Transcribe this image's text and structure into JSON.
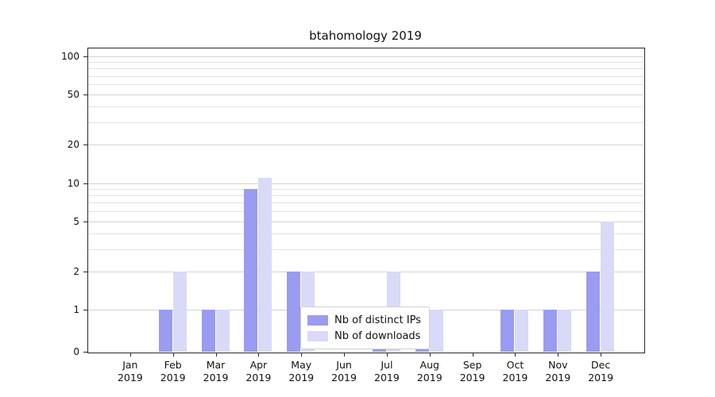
{
  "title": "btahomology 2019",
  "chart_data": {
    "type": "bar",
    "title": "btahomology 2019",
    "categories": [
      "Jan",
      "Feb",
      "Mar",
      "Apr",
      "May",
      "Jun",
      "Jul",
      "Aug",
      "Sep",
      "Oct",
      "Nov",
      "Dec"
    ],
    "year_label": "2019",
    "series": [
      {
        "name": "Nb of distinct IPs",
        "color": "#999cf0",
        "values": [
          0,
          1,
          1,
          9,
          2,
          0,
          1,
          1,
          0,
          1,
          1,
          2
        ]
      },
      {
        "name": "Nb of downloads",
        "color": "#d9daf8",
        "values": [
          0,
          2,
          1,
          11,
          2,
          0,
          2,
          1,
          0,
          1,
          1,
          5
        ]
      }
    ],
    "yticks": [
      0,
      1,
      2,
      5,
      10,
      20,
      50,
      100
    ],
    "minor_gridlines": [
      1,
      2,
      3,
      4,
      5,
      6,
      7,
      8,
      9,
      10,
      20,
      30,
      40,
      50,
      60,
      70,
      80,
      90,
      100
    ],
    "scale": "symlog",
    "ylim": [
      0,
      120
    ],
    "grid": true,
    "legend_position": "lower center"
  }
}
